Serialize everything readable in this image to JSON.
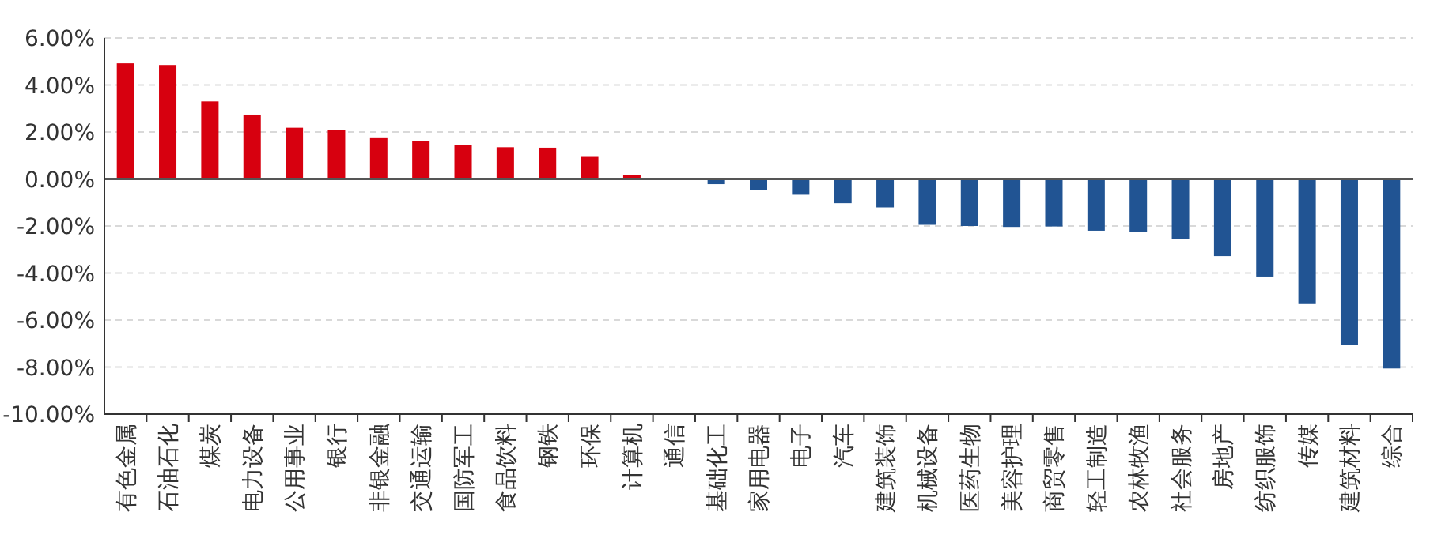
{
  "chart_data": {
    "type": "bar",
    "categories": [
      "有色金属",
      "石油石化",
      "煤炭",
      "电力设备",
      "公用事业",
      "银行",
      "非银金融",
      "交通运输",
      "国防军工",
      "食品饮料",
      "钢铁",
      "环保",
      "计算机",
      "通信",
      "基础化工",
      "家用电器",
      "电子",
      "汽车",
      "建筑装饰",
      "机械设备",
      "医药生物",
      "美容护理",
      "商贸零售",
      "轻工制造",
      "农林牧渔",
      "社会服务",
      "房地产",
      "纺织服饰",
      "传媒",
      "建筑材料",
      "综合"
    ],
    "values": [
      4.92,
      4.85,
      3.3,
      2.74,
      2.18,
      2.09,
      1.77,
      1.62,
      1.46,
      1.35,
      1.33,
      0.94,
      0.18,
      0,
      -0.22,
      -0.47,
      -0.67,
      -1.03,
      -1.21,
      -1.95,
      -2.0,
      -2.04,
      -2.02,
      -2.2,
      -2.24,
      -2.56,
      -3.28,
      -4.15,
      -5.32,
      -7.07,
      -8.06
    ],
    "colors": [
      "#d7000f",
      "#d7000f",
      "#d7000f",
      "#d7000f",
      "#d7000f",
      "#d7000f",
      "#d7000f",
      "#d7000f",
      "#d7000f",
      "#d7000f",
      "#d7000f",
      "#d7000f",
      "#d7000f",
      "#d7000f",
      "#215493",
      "#215493",
      "#215493",
      "#215493",
      "#215493",
      "#215493",
      "#215493",
      "#215493",
      "#215493",
      "#215493",
      "#215493",
      "#215493",
      "#215493",
      "#215493",
      "#215493",
      "#215493",
      "#215493"
    ],
    "ylim": [
      -10,
      6
    ],
    "yticks": [
      {
        "value": 6,
        "label": "6.00%"
      },
      {
        "value": 4,
        "label": "4.00%"
      },
      {
        "value": 2,
        "label": "2.00%"
      },
      {
        "value": 0,
        "label": "0.00%"
      },
      {
        "value": -2,
        "label": "-2.00%"
      },
      {
        "value": -4,
        "label": "-4.00%"
      },
      {
        "value": -6,
        "label": "-6.00%"
      },
      {
        "value": -8,
        "label": "-8.00%"
      },
      {
        "value": -10,
        "label": "-10.00%"
      }
    ],
    "grid": "y"
  }
}
